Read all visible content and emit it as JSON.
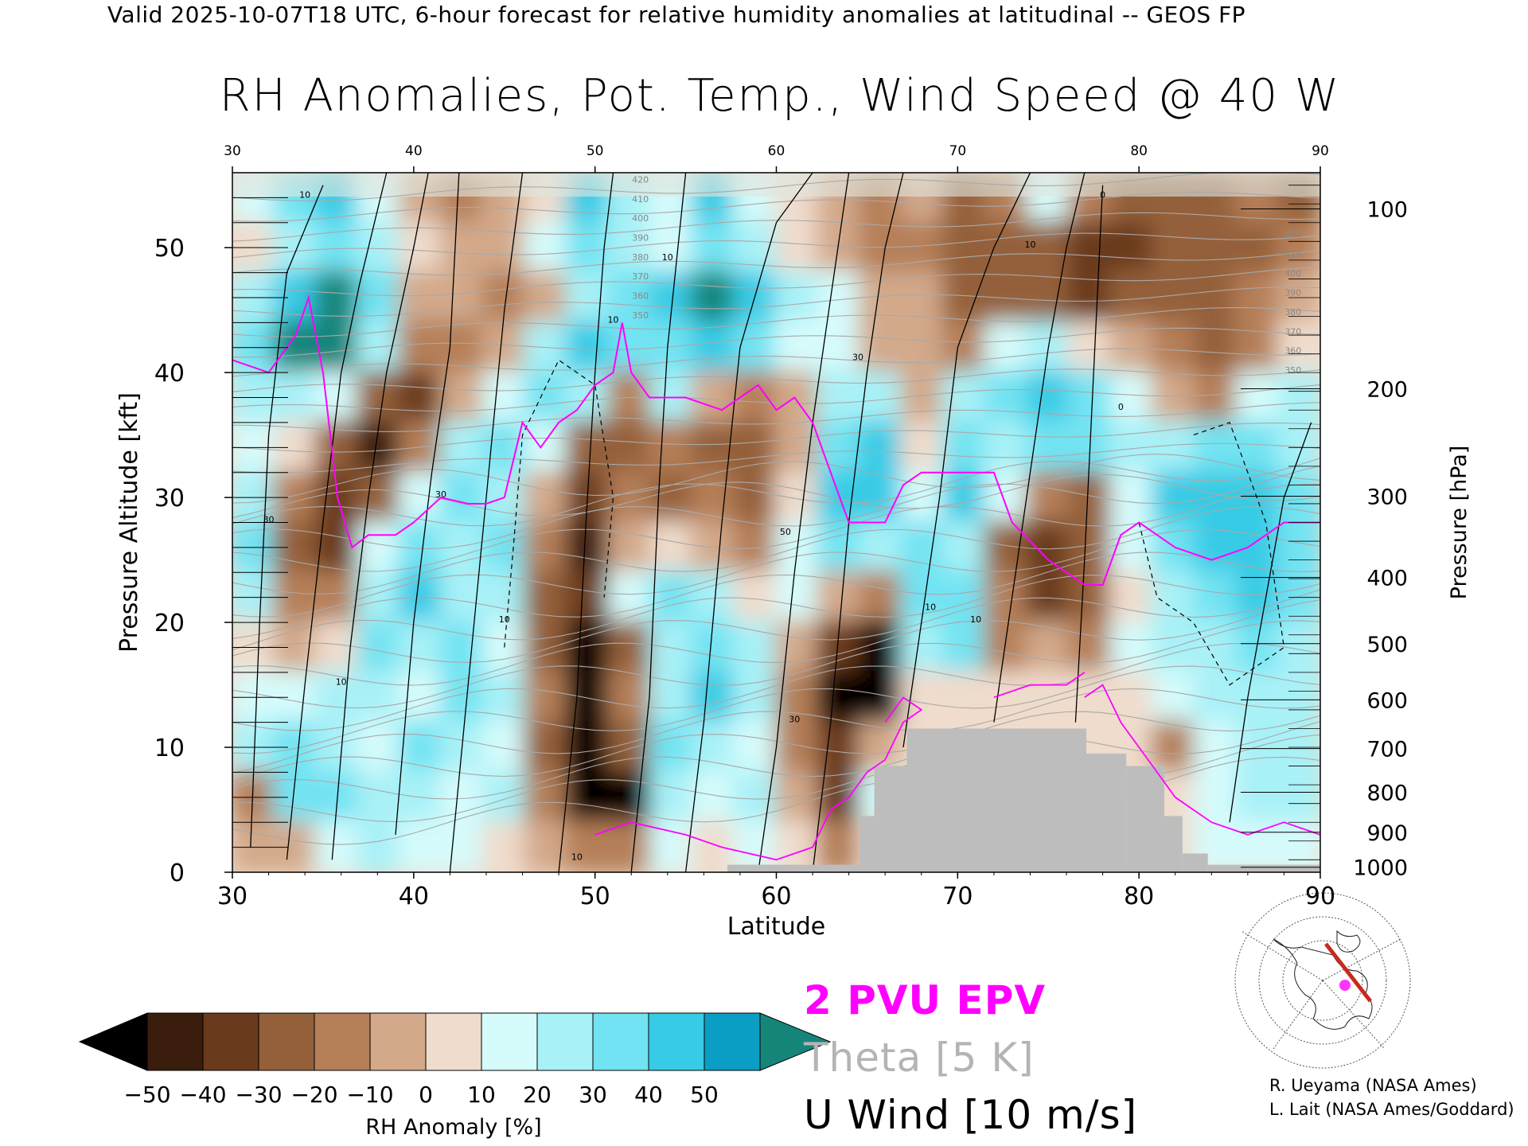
{
  "header": "Valid 2025-10-07T18 UTC, 6-hour forecast for relative humidity anomalies at latitudinal -- GEOS FP",
  "chart_data": {
    "type": "heatmap",
    "title": "RH Anomalies, Pot. Temp., Wind Speed @ 40 W",
    "xlabel": "Latitude",
    "ylabel": "Pressure Altitude [kft]",
    "y2label": "Pressure [hPa]",
    "x_ticks": [
      "30",
      "40",
      "50",
      "60",
      "70",
      "80",
      "90"
    ],
    "xlim": [
      30,
      90
    ],
    "y_ticks": [
      "0",
      "10",
      "20",
      "30",
      "40",
      "50"
    ],
    "ylim": [
      0,
      56
    ],
    "pressure_ticks": [
      {
        "label": "100",
        "kft": 53.1
      },
      {
        "label": "200",
        "kft": 38.7
      },
      {
        "label": "300",
        "kft": 30.1
      },
      {
        "label": "400",
        "kft": 23.6
      },
      {
        "label": "500",
        "kft": 18.3
      },
      {
        "label": "600",
        "kft": 13.8
      },
      {
        "label": "700",
        "kft": 9.9
      },
      {
        "label": "800",
        "kft": 6.4
      },
      {
        "label": "900",
        "kft": 3.2
      },
      {
        "label": "1000",
        "kft": 0.4
      }
    ],
    "colorbar": {
      "label": "RH Anomaly [%]",
      "ticks": [
        "-50",
        "-40",
        "-30",
        "-20",
        "-10",
        "0",
        "10",
        "20",
        "30",
        "40",
        "50"
      ],
      "colors": [
        "#3a1d0c",
        "#6a3a1c",
        "#94603a",
        "#b57f58",
        "#d3a98a",
        "#efdccc",
        "#d6fbfb",
        "#a8f1f7",
        "#72e3f2",
        "#38cbe5",
        "#0a9ec4"
      ],
      "low_extend": "#000000",
      "high_extend": "#15857a"
    },
    "theta_labels": [
      "420",
      "410",
      "400",
      "390",
      "380",
      "370",
      "360",
      "350",
      "340",
      "330",
      "320",
      "310",
      "300",
      "290",
      "280",
      "270"
    ],
    "wind_labels": [
      "0",
      "10",
      "20",
      "30",
      "40",
      "50"
    ],
    "rh_field": [
      [
        10,
        30,
        40,
        10,
        -10,
        -20,
        -10,
        5,
        40,
        20,
        10,
        40,
        10,
        0,
        -10,
        -20,
        -10,
        -25,
        -20,
        10,
        -15,
        -30,
        -25,
        -30,
        -20,
        -25
      ],
      [
        0,
        20,
        30,
        20,
        0,
        -10,
        -10,
        10,
        30,
        20,
        10,
        35,
        20,
        5,
        -10,
        -20,
        -20,
        -25,
        -30,
        -30,
        -35,
        -35,
        -30,
        -30,
        -25,
        -20
      ],
      [
        20,
        40,
        50,
        30,
        -10,
        -10,
        -20,
        -5,
        20,
        30,
        40,
        50,
        40,
        20,
        10,
        -5,
        -10,
        -25,
        -25,
        -30,
        -35,
        -30,
        -30,
        -25,
        -20,
        -10
      ],
      [
        30,
        50,
        50,
        20,
        -20,
        -20,
        -10,
        20,
        40,
        30,
        30,
        40,
        30,
        10,
        15,
        -10,
        -10,
        -20,
        10,
        20,
        0,
        -10,
        -20,
        -30,
        -20,
        0
      ],
      [
        20,
        20,
        10,
        -30,
        -40,
        -10,
        10,
        30,
        20,
        -20,
        20,
        -10,
        -20,
        -10,
        20,
        20,
        -5,
        20,
        30,
        40,
        30,
        10,
        -10,
        -20,
        10,
        20
      ],
      [
        10,
        0,
        -30,
        -45,
        -20,
        20,
        30,
        10,
        -30,
        -30,
        -20,
        -30,
        -30,
        -10,
        30,
        40,
        0,
        30,
        20,
        30,
        30,
        20,
        20,
        30,
        30,
        20
      ],
      [
        20,
        -20,
        -40,
        -30,
        10,
        30,
        20,
        -5,
        -40,
        -20,
        -25,
        -20,
        -30,
        0,
        40,
        40,
        10,
        40,
        10,
        -20,
        -30,
        10,
        40,
        40,
        40,
        30
      ],
      [
        30,
        -30,
        -40,
        10,
        30,
        20,
        30,
        -20,
        -45,
        -10,
        0,
        -10,
        -20,
        10,
        30,
        20,
        30,
        20,
        -30,
        -40,
        -30,
        10,
        30,
        40,
        40,
        30
      ],
      [
        20,
        -20,
        -20,
        20,
        40,
        20,
        20,
        -30,
        -40,
        10,
        30,
        20,
        0,
        10,
        -10,
        -20,
        30,
        30,
        -20,
        -35,
        -30,
        0,
        20,
        30,
        40,
        30
      ],
      [
        0,
        -10,
        0,
        30,
        20,
        30,
        10,
        -30,
        -55,
        -30,
        20,
        30,
        20,
        -10,
        -40,
        -50,
        20,
        30,
        -20,
        -10,
        -20,
        10,
        20,
        20,
        30,
        20
      ],
      [
        10,
        10,
        20,
        20,
        10,
        30,
        20,
        -20,
        -50,
        -20,
        20,
        40,
        20,
        -20,
        -50,
        -50,
        0,
        0,
        0,
        0,
        0,
        0,
        10,
        20,
        20,
        20
      ],
      [
        20,
        30,
        20,
        10,
        30,
        20,
        10,
        -30,
        -55,
        -30,
        30,
        20,
        10,
        -20,
        -40,
        -10,
        0,
        0,
        0,
        0,
        0,
        0,
        -20,
        10,
        20,
        20
      ],
      [
        -20,
        30,
        30,
        20,
        20,
        10,
        20,
        -20,
        -55,
        -50,
        20,
        10,
        20,
        -10,
        -40,
        10,
        0,
        0,
        0,
        0,
        0,
        0,
        0,
        10,
        20,
        20
      ],
      [
        -10,
        -5,
        10,
        20,
        10,
        10,
        5,
        -10,
        -20,
        -20,
        10,
        5,
        10,
        0,
        -20,
        0,
        0,
        0,
        0,
        0,
        0,
        0,
        0,
        10,
        10,
        10
      ]
    ],
    "below_ground_mask_cols": [
      {
        "lat_from": 57.3,
        "lat_to": 64.6,
        "top_kft": 0.6
      },
      {
        "lat_from": 64.6,
        "lat_to": 65.4,
        "top_kft": 4.5
      },
      {
        "lat_from": 65.4,
        "lat_to": 67.2,
        "top_kft": 8.5
      },
      {
        "lat_from": 67.2,
        "lat_to": 77.1,
        "top_kft": 11.5
      },
      {
        "lat_from": 77.1,
        "lat_to": 79.3,
        "top_kft": 9.5
      },
      {
        "lat_from": 79.3,
        "lat_to": 81.4,
        "top_kft": 8.5
      },
      {
        "lat_from": 81.4,
        "lat_to": 82.4,
        "top_kft": 4.5
      },
      {
        "lat_from": 82.4,
        "lat_to": 83.8,
        "top_kft": 1.5
      },
      {
        "lat_from": 83.8,
        "lat_to": 90.0,
        "top_kft": 0.6
      }
    ],
    "epv_2pvu_line": [
      [
        30,
        41
      ],
      [
        32,
        40
      ],
      [
        33.5,
        43
      ],
      [
        34.2,
        46
      ],
      [
        35,
        40
      ],
      [
        35.8,
        30
      ],
      [
        36.6,
        26
      ],
      [
        37.5,
        27
      ],
      [
        39,
        27
      ],
      [
        40,
        28
      ],
      [
        41.5,
        30
      ],
      [
        43,
        29.5
      ],
      [
        44,
        29.5
      ],
      [
        45,
        30
      ],
      [
        46,
        36
      ],
      [
        47,
        34
      ],
      [
        48,
        36
      ],
      [
        49,
        37
      ],
      [
        50,
        39
      ],
      [
        51,
        40
      ],
      [
        51.5,
        44
      ],
      [
        52,
        40
      ],
      [
        53,
        38
      ],
      [
        55,
        38
      ],
      [
        57,
        37
      ],
      [
        58,
        38
      ],
      [
        59,
        39
      ],
      [
        60,
        37
      ],
      [
        61,
        38
      ],
      [
        62,
        36
      ],
      [
        63,
        32
      ],
      [
        64,
        28
      ],
      [
        65,
        28
      ],
      [
        66,
        28
      ],
      [
        67,
        31
      ],
      [
        68,
        32
      ],
      [
        70,
        32
      ],
      [
        72,
        32
      ],
      [
        73,
        28
      ],
      [
        75,
        25
      ],
      [
        76,
        24
      ],
      [
        77,
        23
      ],
      [
        78,
        23
      ],
      [
        79,
        27
      ],
      [
        80,
        28
      ],
      [
        82,
        26
      ],
      [
        84,
        25
      ],
      [
        86,
        26
      ],
      [
        88,
        28
      ],
      [
        90,
        28
      ]
    ],
    "wind_speed_labels_positions_note": "",
    "legend_items": [
      {
        "label": "2 PVU EPV",
        "color": "#ff00ff"
      },
      {
        "label": "Theta [5 K]",
        "color": "#b4b4b4"
      },
      {
        "label": "U Wind [10 m/s]",
        "color": "#000000"
      }
    ]
  },
  "credits": [
    "R. Ueyama (NASA Ames)",
    "L. Lait (NASA Ames/Goddard)"
  ]
}
